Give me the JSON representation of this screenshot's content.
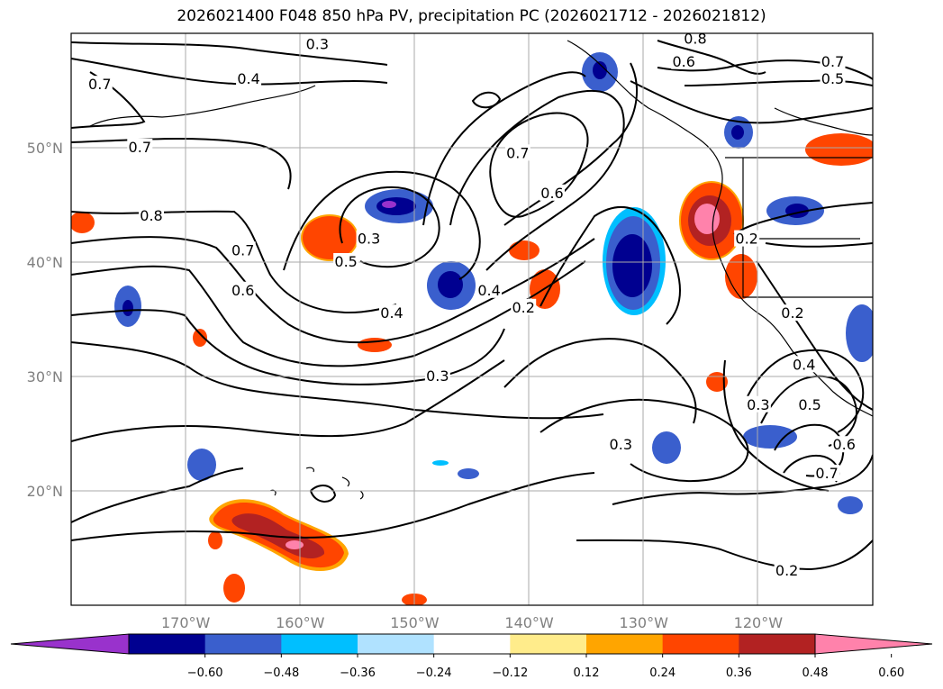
{
  "title": "2026021400 F048 850 hPa PV, precipitation PC (2026021712 - 2026021812)",
  "map": {
    "projection": "plate-carree",
    "lon_range": [
      -180,
      -110
    ],
    "lat_range": [
      10,
      60
    ],
    "gridlines": true,
    "lon_ticks": [
      {
        "lon": -170,
        "label": "170°W"
      },
      {
        "lon": -160,
        "label": "160°W"
      },
      {
        "lon": -150,
        "label": "150°W"
      },
      {
        "lon": -140,
        "label": "140°W"
      },
      {
        "lon": -130,
        "label": "130°W"
      },
      {
        "lon": -120,
        "label": "120°W"
      }
    ],
    "lat_ticks": [
      {
        "lat": 50,
        "label": "50°N"
      },
      {
        "lat": 40,
        "label": "40°N"
      },
      {
        "lat": 30,
        "label": "30°N"
      },
      {
        "lat": 20,
        "label": "20°N"
      }
    ],
    "contour_labels": [
      {
        "text": "0.3",
        "lon": -158.5,
        "lat": 59.0
      },
      {
        "text": "0.4",
        "lon": -164.5,
        "lat": 56.0
      },
      {
        "text": "0.7",
        "lon": -177.5,
        "lat": 55.5
      },
      {
        "text": "0.7",
        "lon": -174.0,
        "lat": 50.0
      },
      {
        "text": "0.8",
        "lon": -173.0,
        "lat": 44.0
      },
      {
        "text": "0.7",
        "lon": -165.0,
        "lat": 41.0
      },
      {
        "text": "0.6",
        "lon": -165.0,
        "lat": 37.5
      },
      {
        "text": "0.5",
        "lon": -156.0,
        "lat": 40.0
      },
      {
        "text": "0.3",
        "lon": -154.0,
        "lat": 42.0
      },
      {
        "text": "0.4",
        "lon": -152.0,
        "lat": 35.5
      },
      {
        "text": "0.7",
        "lon": -141.0,
        "lat": 49.5
      },
      {
        "text": "0.6",
        "lon": -138.0,
        "lat": 46.0
      },
      {
        "text": "0.4",
        "lon": -143.5,
        "lat": 37.5
      },
      {
        "text": "0.2",
        "lon": -140.5,
        "lat": 36.0
      },
      {
        "text": "0.3",
        "lon": -148.0,
        "lat": 30.0
      },
      {
        "text": "0.3",
        "lon": -132.0,
        "lat": 24.0
      },
      {
        "text": "0.8",
        "lon": -125.5,
        "lat": 59.5
      },
      {
        "text": "0.6",
        "lon": -126.5,
        "lat": 57.5
      },
      {
        "text": "0.7",
        "lon": -113.5,
        "lat": 57.5
      },
      {
        "text": "0.5",
        "lon": -113.5,
        "lat": 56.0
      },
      {
        "text": "0.2",
        "lon": -121.0,
        "lat": 42.0
      },
      {
        "text": "0.2",
        "lon": -117.0,
        "lat": 35.5
      },
      {
        "text": "0.4",
        "lon": -116.0,
        "lat": 31.0
      },
      {
        "text": "0.5",
        "lon": -115.5,
        "lat": 27.5
      },
      {
        "text": "0.3",
        "lon": -120.0,
        "lat": 27.5
      },
      {
        "text": "0.6",
        "lon": -112.5,
        "lat": 24.0
      },
      {
        "text": "0.7",
        "lon": -114.0,
        "lat": 21.5
      },
      {
        "text": "0.2",
        "lon": -117.5,
        "lat": 13.0
      }
    ]
  },
  "colorbar": {
    "colors": [
      "#9932CC",
      "#000090",
      "#3A5FCD",
      "#00BFFF",
      "#B0E2FF",
      "#FFFFFF",
      "#FFEC8B",
      "#FFA500",
      "#FF4500",
      "#B22222",
      "#FF82AB"
    ],
    "tick_labels": [
      "−0.60",
      "−0.48",
      "−0.36",
      "−0.24",
      "−0.12",
      "0.12",
      "0.24",
      "0.36",
      "0.48",
      "0.60"
    ],
    "extend": "both"
  }
}
